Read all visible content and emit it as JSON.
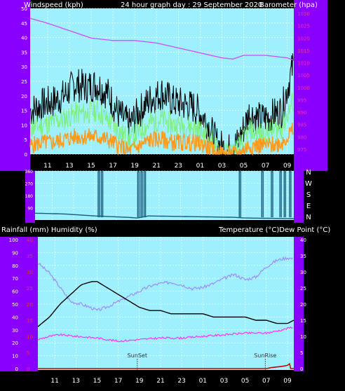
{
  "colors": {
    "background": "#000000",
    "side": "#8a00ff",
    "plot": "#9ef0ff",
    "grid": "#ffffff",
    "gust": "#000000",
    "wind_avg": "#7cf07c",
    "wind_min": "#ff9a1a",
    "pressure": "#d24bff",
    "direction": "#1a5c7a",
    "temperature": "#000000",
    "dew_point": "#ff33ff",
    "humidity": "#9f8cff",
    "rain": "#cc0000"
  },
  "chart_data": [
    {
      "type": "line",
      "id": "wind",
      "title": "24 hour graph day : 29 September 2020",
      "left_axis_label": "Windspeed (kph)",
      "right_axis_label": "Barometer (hpa)",
      "x_ticks": [
        "11",
        "13",
        "15",
        "17",
        "19",
        "21",
        "23",
        "01",
        "03",
        "05",
        "07",
        "09"
      ],
      "x_range_hours": [
        9.4,
        33.6
      ],
      "left_range": [
        0,
        50
      ],
      "left_ticks": [
        "0",
        "5",
        "10",
        "15",
        "20",
        "25",
        "30",
        "35",
        "40",
        "45",
        "50"
      ],
      "right_range": [
        973,
        1032
      ],
      "right_ticks": [
        "975",
        "980",
        "985",
        "990",
        "995",
        "1000",
        "1005",
        "1010",
        "1015",
        "1020",
        "1025",
        "1030"
      ],
      "grid": true,
      "series": [
        {
          "key": "gust",
          "x": [
            9.5,
            10.5,
            11.5,
            12.5,
            13.5,
            14.5,
            15.5,
            16.5,
            17.5,
            18.5,
            19.5,
            20.5,
            21.5,
            22.5,
            23.5,
            24.5,
            25.5,
            26.5,
            27.5,
            28.5,
            29.5,
            30.5,
            31.5,
            32.5,
            33.5
          ],
          "values": [
            15,
            17,
            18,
            20,
            24,
            23,
            24,
            21,
            14,
            10,
            15,
            19,
            21,
            18,
            17,
            16,
            12,
            4,
            1,
            4,
            14,
            12,
            13,
            15,
            30
          ]
        },
        {
          "key": "wind_avg",
          "x": [
            9.5,
            10.5,
            11.5,
            12.5,
            13.5,
            14.5,
            15.5,
            16.5,
            17.5,
            18.5,
            19.5,
            20.5,
            21.5,
            22.5,
            23.5,
            24.5,
            25.5,
            26.5,
            27.5,
            28.5,
            29.5,
            30.5,
            31.5,
            32.5,
            33.5
          ],
          "values": [
            9,
            10,
            11,
            12,
            14,
            14,
            15,
            12,
            8,
            5,
            8,
            11,
            12,
            10,
            10,
            9,
            7,
            2,
            0,
            2,
            8,
            7,
            8,
            9,
            18
          ]
        },
        {
          "key": "wind_min",
          "x": [
            9.5,
            10.5,
            11.5,
            12.5,
            13.5,
            14.5,
            15.5,
            16.5,
            17.5,
            18.5,
            19.5,
            20.5,
            21.5,
            22.5,
            23.5,
            24.5,
            25.5,
            26.5,
            27.5,
            28.5,
            29.5,
            30.5,
            31.5,
            32.5,
            33.5
          ],
          "values": [
            3,
            4,
            4,
            5,
            6,
            6,
            6,
            5,
            3,
            1,
            3,
            5,
            5,
            4,
            4,
            4,
            3,
            0,
            0,
            0,
            3,
            3,
            3,
            4,
            8
          ]
        },
        {
          "key": "pressure",
          "axis": "right",
          "x": [
            9.4,
            11,
            13,
            15,
            17,
            19,
            21,
            23,
            25,
            27,
            28,
            29,
            31,
            33,
            33.6
          ],
          "values": [
            1028,
            1026,
            1023,
            1020,
            1019,
            1019,
            1018,
            1016,
            1014,
            1012,
            1011.5,
            1013,
            1013,
            1012,
            1011
          ]
        }
      ]
    },
    {
      "type": "line",
      "id": "direction",
      "right_labels": [
        "N",
        "W",
        "S",
        "E",
        "N"
      ],
      "y_range": [
        0,
        360
      ],
      "y_ticks": [
        "90",
        "180",
        "270",
        "360"
      ],
      "x_range_hours": [
        9.4,
        33.6
      ],
      "grid": true,
      "series": [
        {
          "key": "direction",
          "x": [
            9.4,
            12,
            15,
            18,
            19,
            20,
            24,
            28,
            29,
            33.6
          ],
          "values": [
            50,
            45,
            30,
            20,
            15,
            30,
            25,
            20,
            15,
            10
          ]
        }
      ],
      "spikes_hours": [
        15.3,
        15.6,
        19.0,
        19.3,
        19.6,
        28.5,
        30.6,
        31.5,
        32.3,
        32.7,
        33.2
      ]
    },
    {
      "type": "line",
      "id": "temperature",
      "left_axis_label": "Rainfall (mm)  Humidity (%)",
      "right_axis_label": "Temperature (°C)Dew Point (°C)",
      "x_ticks": [
        "11",
        "13",
        "15",
        "17",
        "19",
        "21",
        "23",
        "01",
        "03",
        "05",
        "07",
        "09"
      ],
      "x_range_hours": [
        9.4,
        33.6
      ],
      "humidity_range": [
        0,
        100
      ],
      "humidity_ticks": [
        "0",
        "10",
        "20",
        "30",
        "40",
        "50",
        "60",
        "70",
        "80",
        "90",
        "100"
      ],
      "rain_range": [
        0,
        40
      ],
      "rain_ticks": [
        "0",
        "5",
        "10",
        "15",
        "20",
        "25",
        "30",
        "35",
        "40"
      ],
      "temp_range": [
        0,
        40
      ],
      "temp_ticks": [
        "0",
        "5",
        "10",
        "15",
        "20",
        "25",
        "30",
        "35",
        "40"
      ],
      "grid": true,
      "annotations": [
        {
          "label": "SunSet",
          "x_hour": 18.8
        },
        {
          "label": "SunRise",
          "x_hour": 30.9
        }
      ],
      "series": [
        {
          "key": "temperature",
          "axis": "temp",
          "x": [
            9.4,
            10.5,
            11.5,
            12.5,
            13.5,
            14.5,
            15,
            16,
            17,
            18,
            19,
            20,
            21,
            22,
            23,
            24,
            25,
            26,
            27,
            28,
            29,
            30,
            31,
            32,
            33,
            33.6
          ],
          "values": [
            13,
            16,
            20,
            23,
            26,
            27,
            27,
            25,
            23,
            21,
            19,
            18,
            18,
            17,
            17,
            17,
            17,
            16,
            16,
            16,
            16,
            15,
            15,
            14,
            14,
            15
          ]
        },
        {
          "key": "dew_point",
          "axis": "temp",
          "x": [
            9.4,
            10.5,
            11.5,
            13,
            15,
            16,
            17,
            19,
            21,
            23,
            25,
            27,
            29,
            31,
            32.5,
            33.6
          ],
          "values": [
            9,
            10,
            10.5,
            10,
            9.5,
            9,
            8.5,
            9,
            9.5,
            9.5,
            10,
            10.5,
            11,
            11,
            12,
            13
          ]
        },
        {
          "key": "humidity",
          "axis": "humidity",
          "x": [
            9.4,
            10.5,
            11.5,
            12.5,
            13.5,
            14.5,
            15,
            16,
            17,
            18,
            19,
            20,
            21,
            22,
            23,
            24,
            25,
            26,
            27,
            28,
            29,
            30,
            31,
            32,
            33,
            33.6
          ],
          "values": [
            82,
            74,
            63,
            52,
            50,
            47,
            45,
            48,
            52,
            56,
            60,
            64,
            66,
            67,
            65,
            62,
            63,
            66,
            70,
            73,
            69,
            71,
            79,
            84,
            86,
            85
          ]
        },
        {
          "key": "rain",
          "axis": "rain",
          "x": [
            9.4,
            31,
            31.5,
            32,
            32.5,
            33,
            33.2,
            33.3,
            33.6
          ],
          "values": [
            0,
            0,
            0.3,
            0.5,
            0.7,
            1.0,
            1.5,
            0,
            0
          ]
        }
      ]
    }
  ]
}
